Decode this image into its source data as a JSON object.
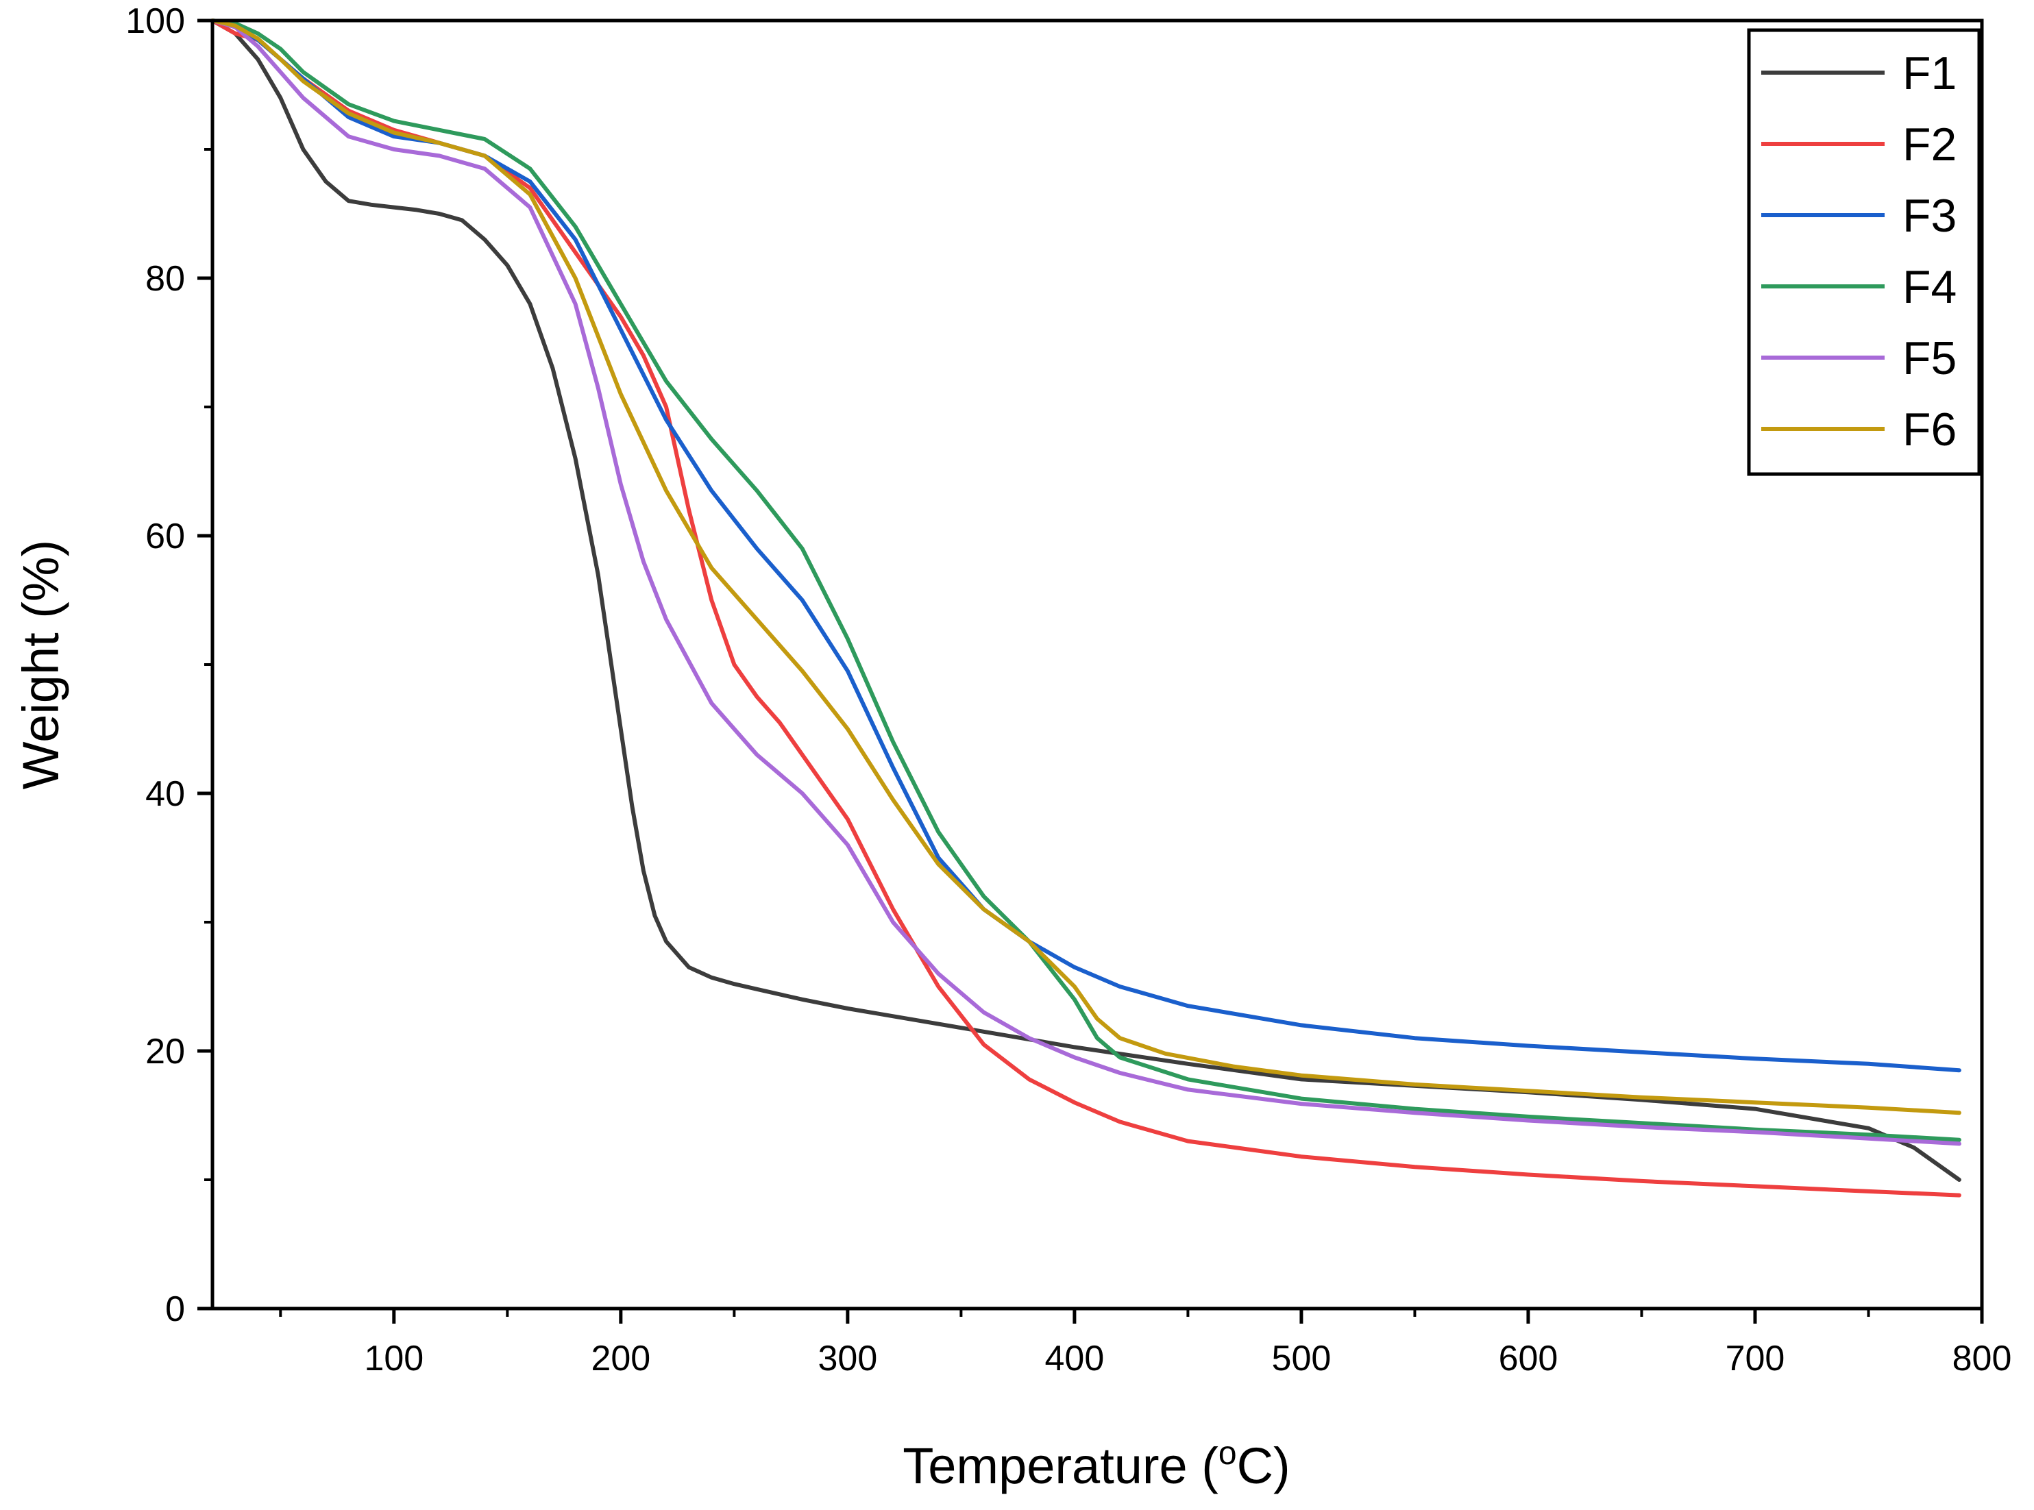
{
  "chart_data": {
    "type": "line",
    "title": "",
    "xlabel": "Temperature (",
    "xlabel_sup": "o",
    "xlabel_suffix": "C)",
    "ylabel": "Weight (%)",
    "xlim": [
      20,
      800
    ],
    "ylim": [
      0,
      100
    ],
    "xticks": [
      100,
      200,
      300,
      400,
      500,
      600,
      700,
      800
    ],
    "xtick_labels": [
      "100",
      "200",
      "300",
      "400",
      "500",
      "600",
      "700",
      "800"
    ],
    "xminor": [
      50,
      150,
      250,
      350,
      450,
      550,
      650,
      750
    ],
    "yticks": [
      0,
      20,
      40,
      60,
      80,
      100
    ],
    "ytick_labels": [
      "0",
      "20",
      "40",
      "60",
      "80",
      "100"
    ],
    "yminor": [
      10,
      30,
      50,
      70,
      90
    ],
    "grid": false,
    "legend_position": "top-right",
    "series": [
      {
        "name": "F1",
        "color": "#3c3c3c",
        "x": [
          20,
          30,
          40,
          50,
          60,
          70,
          80,
          90,
          100,
          110,
          120,
          130,
          140,
          150,
          160,
          170,
          180,
          190,
          195,
          200,
          205,
          210,
          215,
          220,
          230,
          240,
          250,
          260,
          270,
          280,
          300,
          350,
          400,
          450,
          500,
          600,
          650,
          700,
          750,
          770,
          790
        ],
        "y": [
          100,
          99,
          97,
          94,
          90,
          87.5,
          86,
          85.7,
          85.5,
          85.3,
          85,
          84.5,
          83,
          81,
          78,
          73,
          66,
          57,
          51,
          45,
          39,
          34,
          30.5,
          28.5,
          26.5,
          25.7,
          25.2,
          24.8,
          24.4,
          24,
          23.3,
          21.8,
          20.3,
          19,
          17.8,
          16.8,
          16.2,
          15.5,
          14,
          12.5,
          10
        ]
      },
      {
        "name": "F2",
        "color": "#ee3f3f",
        "x": [
          20,
          30,
          40,
          50,
          60,
          80,
          100,
          120,
          140,
          160,
          180,
          200,
          210,
          220,
          230,
          240,
          250,
          260,
          270,
          280,
          300,
          320,
          340,
          360,
          380,
          400,
          420,
          450,
          500,
          550,
          600,
          650,
          700,
          750,
          790
        ],
        "y": [
          100,
          99,
          98.5,
          97,
          95.5,
          93,
          91.5,
          90.5,
          89.5,
          87,
          82,
          77,
          74,
          70,
          62,
          55,
          50,
          47.5,
          45.5,
          43,
          38,
          31,
          25,
          20.5,
          17.8,
          16,
          14.5,
          13,
          11.8,
          11,
          10.4,
          9.9,
          9.5,
          9.1,
          8.8
        ]
      },
      {
        "name": "F3",
        "color": "#1a5fcc",
        "x": [
          20,
          30,
          40,
          50,
          60,
          80,
          100,
          120,
          140,
          160,
          180,
          200,
          220,
          240,
          260,
          280,
          300,
          320,
          340,
          360,
          380,
          400,
          420,
          450,
          500,
          550,
          600,
          650,
          700,
          750,
          790
        ],
        "y": [
          100,
          99.5,
          98.5,
          97,
          95.5,
          92.5,
          91,
          90.5,
          89.5,
          87.5,
          83,
          76,
          69,
          63.5,
          59,
          55,
          49.5,
          42,
          35,
          31,
          28.5,
          26.5,
          25,
          23.5,
          22,
          21,
          20.4,
          19.9,
          19.4,
          19,
          18.5
        ]
      },
      {
        "name": "F4",
        "color": "#2e9a5c",
        "x": [
          20,
          30,
          40,
          50,
          60,
          80,
          100,
          120,
          140,
          160,
          180,
          200,
          220,
          240,
          260,
          280,
          300,
          320,
          340,
          360,
          380,
          400,
          410,
          420,
          450,
          500,
          550,
          600,
          650,
          700,
          750,
          790
        ],
        "y": [
          100,
          99.8,
          99,
          97.8,
          96,
          93.5,
          92.2,
          91.5,
          90.8,
          88.5,
          84,
          78,
          72,
          67.5,
          63.5,
          59,
          52,
          44,
          37,
          32,
          28.5,
          24,
          21,
          19.5,
          17.8,
          16.3,
          15.5,
          14.9,
          14.4,
          13.9,
          13.5,
          13.1
        ]
      },
      {
        "name": "F5",
        "color": "#a86ad8",
        "x": [
          20,
          30,
          40,
          50,
          60,
          80,
          100,
          120,
          140,
          160,
          180,
          190,
          200,
          210,
          220,
          240,
          260,
          280,
          300,
          320,
          340,
          360,
          380,
          400,
          420,
          450,
          500,
          550,
          600,
          650,
          700,
          750,
          790
        ],
        "y": [
          100,
          99.5,
          98,
          96,
          94,
          91,
          90,
          89.5,
          88.5,
          85.5,
          78,
          71.5,
          64,
          58,
          53.5,
          47,
          43,
          40,
          36,
          30,
          26,
          23,
          21,
          19.5,
          18.3,
          17,
          15.9,
          15.2,
          14.6,
          14.1,
          13.7,
          13.2,
          12.8
        ]
      },
      {
        "name": "F6",
        "color": "#c39a0f",
        "x": [
          20,
          30,
          40,
          50,
          60,
          80,
          100,
          120,
          140,
          160,
          180,
          200,
          220,
          240,
          260,
          280,
          300,
          320,
          340,
          360,
          380,
          400,
          410,
          420,
          440,
          470,
          500,
          550,
          600,
          650,
          700,
          750,
          790
        ],
        "y": [
          100,
          99.6,
          98.6,
          97,
          95.3,
          92.8,
          91.3,
          90.5,
          89.5,
          86.5,
          80,
          71,
          63.5,
          57.5,
          53.5,
          49.5,
          45,
          39.5,
          34.5,
          31,
          28.5,
          25,
          22.5,
          21,
          19.8,
          18.8,
          18.1,
          17.4,
          16.9,
          16.4,
          16,
          15.6,
          15.2
        ]
      }
    ]
  }
}
